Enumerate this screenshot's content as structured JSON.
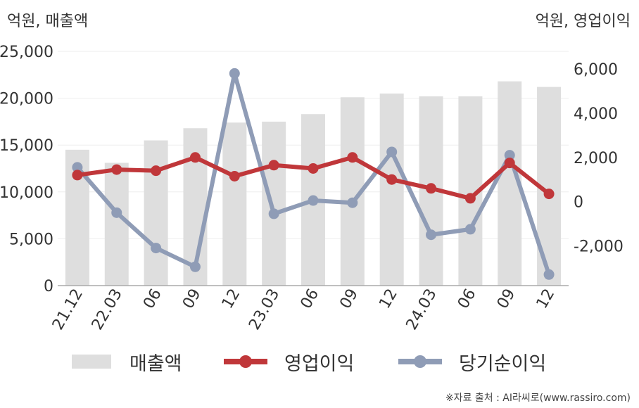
{
  "units": {
    "left": "억원, 매출액",
    "right": "억원, 영업이익"
  },
  "legend": {
    "revenue": "매출액",
    "operating": "영업이익",
    "net": "당기순이익"
  },
  "source": "※자료 출처 : AI라씨로(www.rassiro.com)",
  "colors": {
    "revenue": "#dedede",
    "operating": "#c0373a",
    "net": "#8f9cb6",
    "axis": "#aaaaaa",
    "grid": "#eeeeee"
  },
  "chart_data": {
    "type": "bar",
    "categories": [
      "21.12",
      "22.03",
      "06",
      "09",
      "12",
      "23.03",
      "06",
      "09",
      "12",
      "24.03",
      "06",
      "09",
      "12"
    ],
    "left_axis": {
      "ylim": [
        0,
        25000
      ],
      "ticks": [
        0,
        5000,
        10000,
        15000,
        20000,
        25000
      ],
      "tick_labels": [
        "0",
        "5,000",
        "10,000",
        "15,000",
        "20,000",
        "25,000"
      ]
    },
    "right_axis": {
      "ylim": [
        -3800,
        6800
      ],
      "ticks": [
        -2000,
        0,
        2000,
        4000,
        6000
      ],
      "tick_labels": [
        "-2,000",
        "0",
        "2,000",
        "4,000",
        "6,000"
      ]
    },
    "series": [
      {
        "name": "매출액",
        "type": "bar",
        "axis": "left",
        "values": [
          14500,
          13100,
          15500,
          16800,
          17400,
          17500,
          18300,
          20100,
          20500,
          20200,
          20200,
          21800,
          21200
        ]
      },
      {
        "name": "영업이익",
        "type": "line",
        "axis": "right",
        "values": [
          1200,
          1450,
          1400,
          2000,
          1150,
          1650,
          1500,
          2000,
          1000,
          600,
          150,
          1750,
          350
        ]
      },
      {
        "name": "당기순이익",
        "type": "line",
        "axis": "right",
        "values": [
          1550,
          -500,
          -2100,
          -2950,
          5800,
          -550,
          50,
          -50,
          2250,
          -1500,
          -1250,
          2100,
          -3300
        ]
      }
    ],
    "grid": true,
    "legend_position": "bottom"
  }
}
